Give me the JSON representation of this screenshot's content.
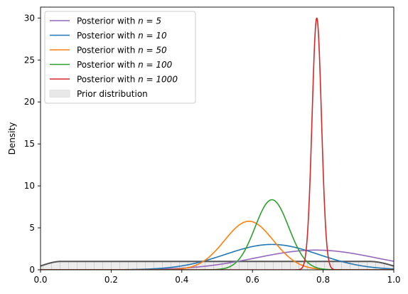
{
  "chart_data": {
    "type": "line",
    "title": "",
    "xlabel": "",
    "ylabel": "Density",
    "xlim": [
      0.0,
      1.0
    ],
    "ylim": [
      0,
      31.3
    ],
    "xticks": [
      "0.0",
      "0.2",
      "0.4",
      "0.6",
      "0.8",
      "1.0"
    ],
    "yticks": [
      "0",
      "5",
      "10",
      "15",
      "20",
      "25",
      "30"
    ],
    "grid": false,
    "legend_position": "top-left",
    "series": [
      {
        "name": "Posterior with n = 5",
        "prefix": "Posterior with ",
        "math": "n = 5",
        "color": "#9467bd",
        "kind": "normal",
        "mean": 0.78,
        "sd": 0.17,
        "scale": 1.0
      },
      {
        "name": "Posterior with n = 10",
        "prefix": "Posterior with ",
        "math": "n = 10",
        "color": "#1f77b4",
        "kind": "normal",
        "mean": 0.655,
        "sd": 0.132,
        "scale": 1.0
      },
      {
        "name": "Posterior with n = 50",
        "prefix": "Posterior with ",
        "math": "n = 50",
        "color": "#ff7f0e",
        "kind": "normal",
        "mean": 0.59,
        "sd": 0.069,
        "scale": 1.0
      },
      {
        "name": "Posterior with n = 100",
        "prefix": "Posterior with ",
        "math": "n = 100",
        "color": "#2ca02c",
        "kind": "normal",
        "mean": 0.655,
        "sd": 0.0478,
        "scale": 1.0
      },
      {
        "name": "Posterior with n = 1000",
        "prefix": "Posterior with ",
        "math": "n = 1000",
        "color": "#d62728",
        "kind": "normal",
        "mean": 0.782,
        "sd": 0.0133,
        "scale": 1.0
      }
    ],
    "prior": {
      "name": "Prior distribution",
      "fill_color": "#e8e8e8",
      "line_color": "#555555",
      "plateau_density": 1.0,
      "left_ramp_end": 0.06,
      "right_ramp_start": 0.93
    }
  }
}
